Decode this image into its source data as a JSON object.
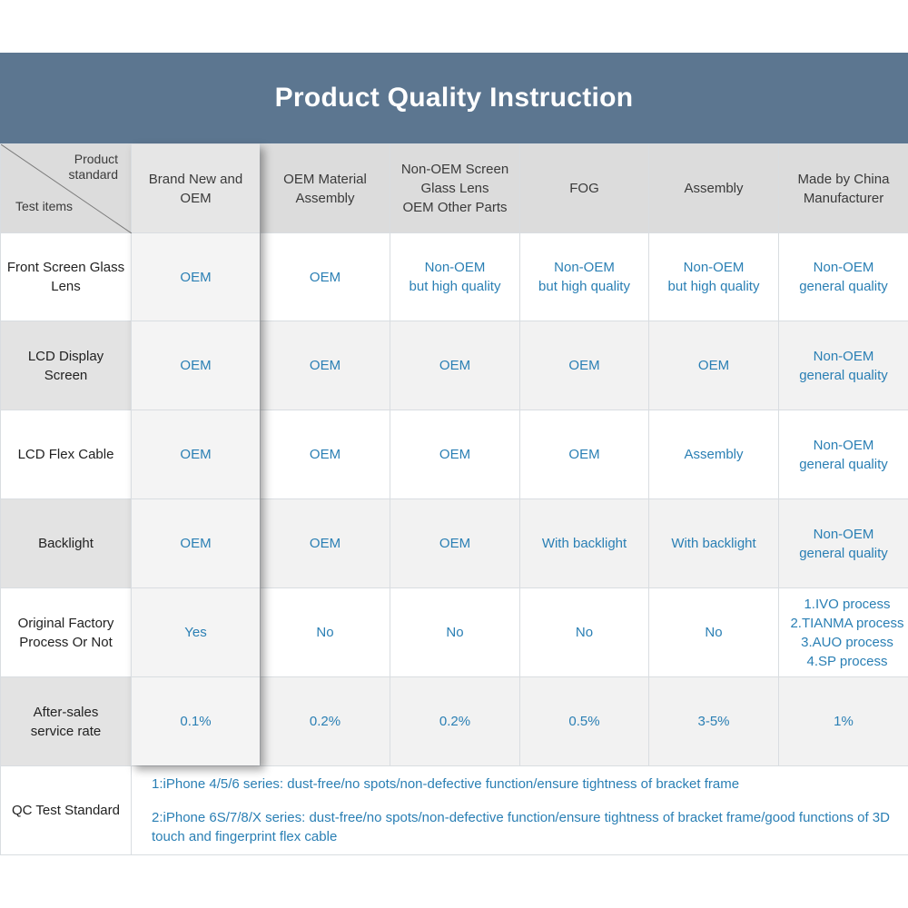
{
  "title": "Product Quality Instruction",
  "corner": {
    "top_label_line1": "Product",
    "top_label_line2": "standard",
    "bottom_label": "Test items"
  },
  "columns": [
    {
      "line1": "Brand New and",
      "line2": "OEM",
      "line3": ""
    },
    {
      "line1": "OEM Material",
      "line2": "Assembly",
      "line3": ""
    },
    {
      "line1": "Non-OEM Screen",
      "line2": "Glass Lens",
      "line3": "OEM Other Parts"
    },
    {
      "line1": "FOG",
      "line2": "",
      "line3": ""
    },
    {
      "line1": "Assembly",
      "line2": "",
      "line3": ""
    },
    {
      "line1": "Made by China",
      "line2": "Manufacturer",
      "line3": ""
    }
  ],
  "rows": [
    {
      "label1": "Front Screen Glass",
      "label2": "Lens",
      "cells": [
        [
          "OEM",
          ""
        ],
        [
          "OEM",
          ""
        ],
        [
          "Non-OEM",
          "but high quality"
        ],
        [
          "Non-OEM",
          "but high quality"
        ],
        [
          "Non-OEM",
          "but high quality"
        ],
        [
          "Non-OEM",
          "general quality"
        ]
      ]
    },
    {
      "label1": "LCD Display",
      "label2": "Screen",
      "cells": [
        [
          "OEM",
          ""
        ],
        [
          "OEM",
          ""
        ],
        [
          "OEM",
          ""
        ],
        [
          "OEM",
          ""
        ],
        [
          "OEM",
          ""
        ],
        [
          "Non-OEM",
          "general quality"
        ]
      ]
    },
    {
      "label1": "LCD Flex Cable",
      "label2": "",
      "cells": [
        [
          "OEM",
          ""
        ],
        [
          "OEM",
          ""
        ],
        [
          "OEM",
          ""
        ],
        [
          "OEM",
          ""
        ],
        [
          "Assembly",
          ""
        ],
        [
          "Non-OEM",
          "general quality"
        ]
      ]
    },
    {
      "label1": "Backlight",
      "label2": "",
      "cells": [
        [
          "OEM",
          ""
        ],
        [
          "OEM",
          ""
        ],
        [
          "OEM",
          ""
        ],
        [
          "With backlight",
          ""
        ],
        [
          "With backlight",
          ""
        ],
        [
          "Non-OEM",
          "general quality"
        ]
      ]
    },
    {
      "label1": "Original Factory",
      "label2": "Process Or Not",
      "cells": [
        [
          "Yes",
          ""
        ],
        [
          "No",
          ""
        ],
        [
          "No",
          ""
        ],
        [
          "No",
          ""
        ],
        [
          "No",
          ""
        ]
      ],
      "process_list": [
        "1.IVO process",
        "2.TIANMA process",
        "3.AUO process",
        "4.SP process"
      ]
    },
    {
      "label1": "After-sales",
      "label2": "service rate",
      "cells": [
        [
          "0.1%",
          ""
        ],
        [
          "0.2%",
          ""
        ],
        [
          "0.2%",
          ""
        ],
        [
          "0.5%",
          ""
        ],
        [
          "3-5%",
          ""
        ],
        [
          "1%",
          ""
        ]
      ]
    }
  ],
  "qc": {
    "label": "QC Test Standard",
    "line1": "1:iPhone 4/5/6 series: dust-free/no spots/non-defective function/ensure tightness of bracket frame",
    "line2": "2:iPhone 6S/7/8/X series: dust-free/no spots/non-defective function/ensure tightness of bracket frame/good functions of 3D touch and fingerprint flex cable"
  },
  "colors": {
    "title_bar": "#5c7690",
    "value_text": "#2a7fb4",
    "header_bg": "#dcdcdc"
  }
}
